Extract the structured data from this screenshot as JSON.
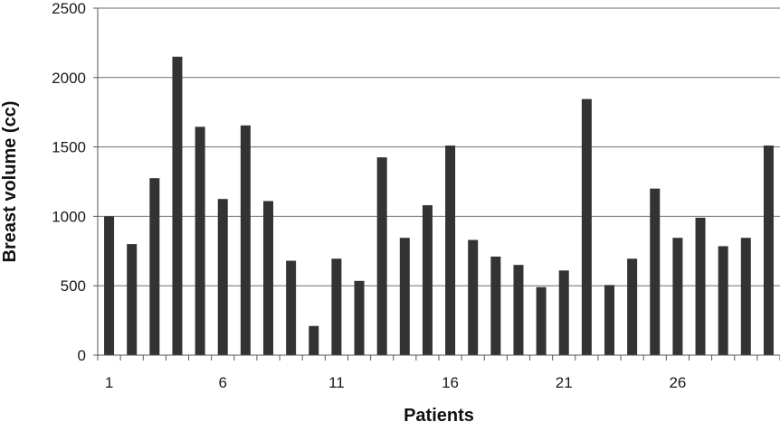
{
  "chart_data": {
    "type": "bar",
    "title": "",
    "xlabel": "Patients",
    "ylabel": "Breast volume (cc)",
    "ylim": [
      0,
      2500
    ],
    "y_ticks": [
      0,
      500,
      1000,
      1500,
      2000,
      2500
    ],
    "x_tick_labels": [
      {
        "label": "1",
        "category": 1
      },
      {
        "label": "6",
        "category": 6
      },
      {
        "label": "11",
        "category": 11
      },
      {
        "label": "16",
        "category": 16
      },
      {
        "label": "21",
        "category": 21
      },
      {
        "label": "26",
        "category": 26
      }
    ],
    "grid": "horizontal",
    "bar_color": "#333333",
    "categories": [
      1,
      2,
      3,
      4,
      5,
      6,
      7,
      8,
      9,
      10,
      11,
      12,
      13,
      14,
      15,
      16,
      17,
      18,
      19,
      20,
      21,
      22,
      23,
      24,
      25,
      26,
      27,
      28,
      29,
      30
    ],
    "values": [
      1000,
      800,
      1275,
      2150,
      1645,
      1125,
      1655,
      1110,
      680,
      210,
      695,
      535,
      1425,
      845,
      1080,
      1510,
      830,
      710,
      650,
      490,
      610,
      1845,
      505,
      695,
      1200,
      845,
      990,
      785,
      845,
      1510
    ]
  }
}
